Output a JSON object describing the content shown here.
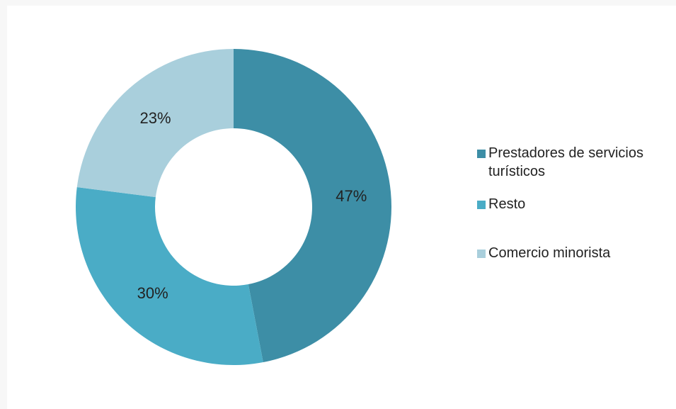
{
  "chart_data": {
    "type": "pie",
    "variant": "donut",
    "title": "",
    "slices": [
      {
        "label": "Prestadores de servicios turísticos",
        "value": 47,
        "data_label": "47%",
        "color": "#3d8ea6"
      },
      {
        "label": "Resto",
        "value": 30,
        "data_label": "30%",
        "color": "#4aacc6"
      },
      {
        "label": "Comercio minorista",
        "value": 23,
        "data_label": "23%",
        "color": "#a9cfdc"
      }
    ],
    "legend_position": "right"
  },
  "colors": {
    "background": "#f7f7f7",
    "canvas": "#ffffff",
    "text": "#222222"
  }
}
